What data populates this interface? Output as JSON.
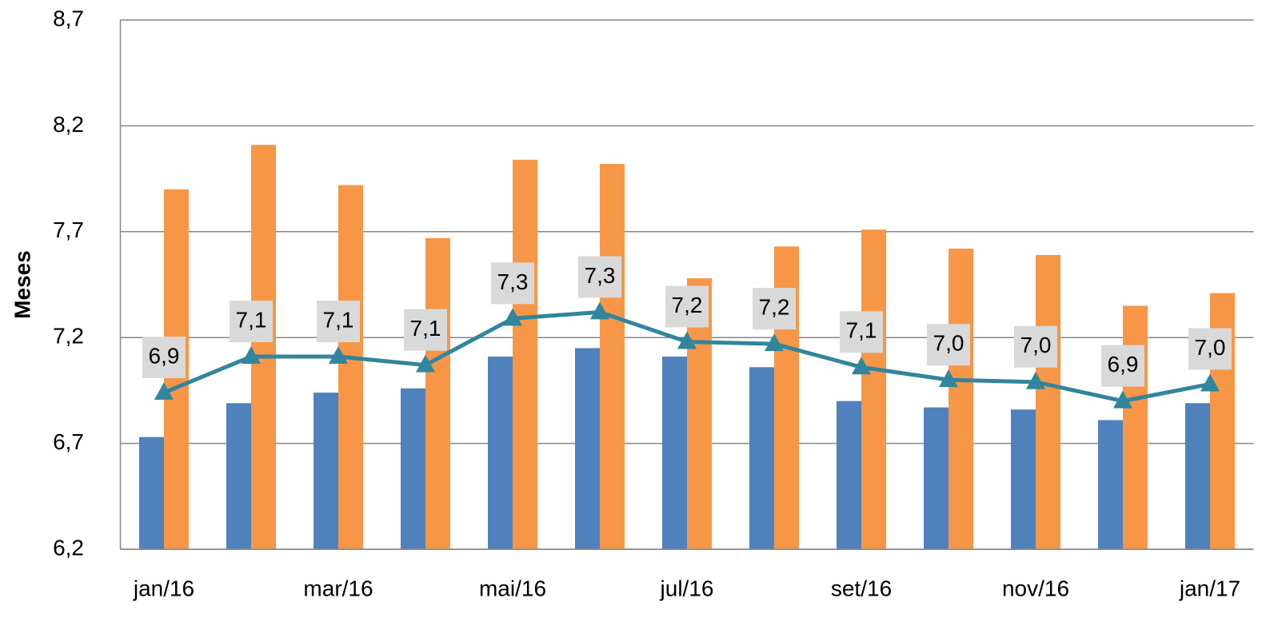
{
  "chart_data": {
    "type": "bar",
    "y_label": "Meses",
    "categories": [
      "jan/16",
      null,
      "mar/16",
      null,
      "mai/16",
      null,
      "jul/16",
      null,
      "set/16",
      null,
      "nov/16",
      null,
      "jan/17"
    ],
    "ylim": [
      6.2,
      8.7
    ],
    "yticks": [
      {
        "value": 6.2,
        "label": "6,2"
      },
      {
        "value": 6.7,
        "label": "6,7"
      },
      {
        "value": 7.2,
        "label": "7,2"
      },
      {
        "value": 7.7,
        "label": "7,7"
      },
      {
        "value": 8.2,
        "label": "8,2"
      },
      {
        "value": 8.7,
        "label": "8,7"
      }
    ],
    "grid": true,
    "series": [
      {
        "type": "bar",
        "color": "#4f81bd",
        "values": [
          6.73,
          6.89,
          6.94,
          6.96,
          7.11,
          7.15,
          7.11,
          7.06,
          6.9,
          6.87,
          6.86,
          6.81,
          6.89
        ]
      },
      {
        "type": "bar",
        "color": "#f79646",
        "values": [
          7.9,
          8.11,
          7.92,
          7.67,
          8.04,
          8.02,
          7.48,
          7.63,
          7.71,
          7.62,
          7.59,
          7.35,
          7.41
        ]
      },
      {
        "type": "line",
        "color": "#31859c",
        "values": [
          6.94,
          7.11,
          7.11,
          7.07,
          7.29,
          7.32,
          7.18,
          7.17,
          7.06,
          7.0,
          6.99,
          6.9,
          6.98
        ],
        "value_labels": [
          "6,9",
          "7,1",
          "7,1",
          "7,1",
          "7,3",
          "7,3",
          "7,2",
          "7,2",
          "7,1",
          "7,0",
          "7,0",
          "6,9",
          "7,0"
        ]
      }
    ]
  }
}
